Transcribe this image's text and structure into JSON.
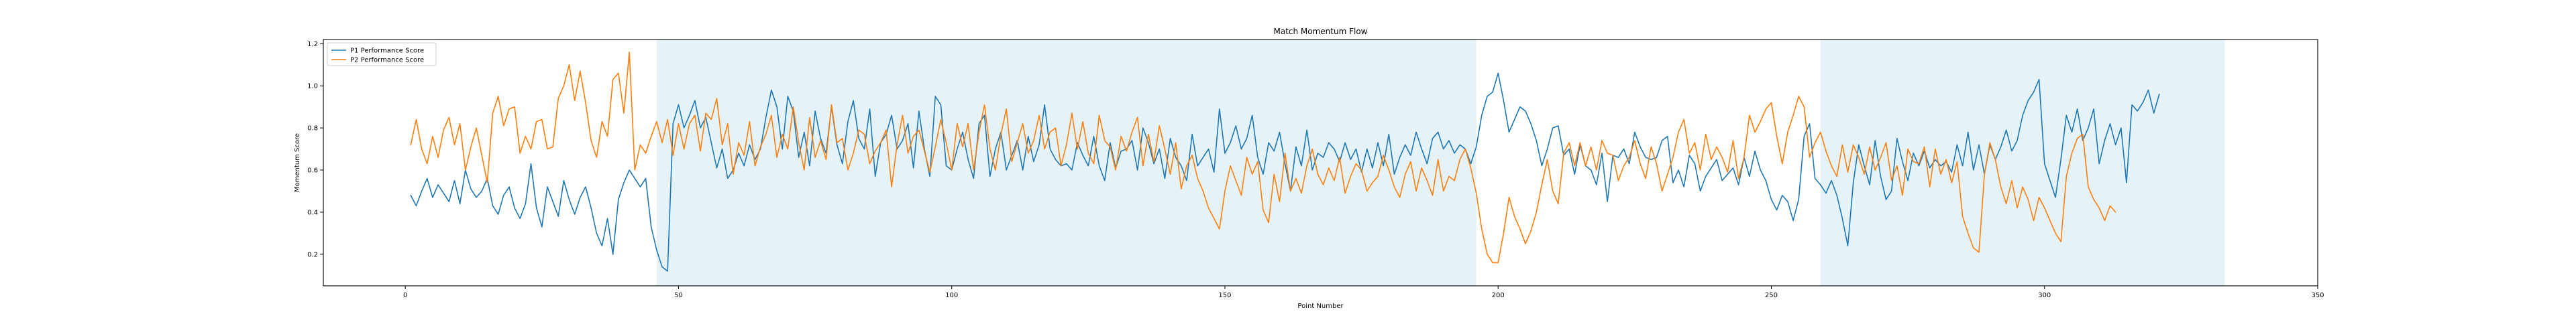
{
  "chart_data": {
    "type": "line",
    "title": "Match Momentum Flow",
    "xlabel": "Point Number",
    "ylabel": "Momentum Score",
    "xlim": [
      -15,
      350
    ],
    "ylim": [
      0.05,
      1.22
    ],
    "xticks": [
      0,
      50,
      100,
      150,
      200,
      250,
      300,
      350
    ],
    "yticks": [
      0.2,
      0.4,
      0.6,
      0.8,
      1.0,
      1.2
    ],
    "grid": false,
    "legend_position": "top-left",
    "shaded_regions": [
      [
        46,
        196
      ],
      [
        259,
        333
      ]
    ],
    "shade_color": "#add8e6",
    "series": [
      {
        "name": "P1 Performance Score",
        "color": "#1f77b4",
        "x_start": 1,
        "values": [
          0.48,
          0.43,
          0.5,
          0.56,
          0.47,
          0.53,
          0.49,
          0.45,
          0.55,
          0.44,
          0.6,
          0.51,
          0.47,
          0.5,
          0.56,
          0.43,
          0.39,
          0.48,
          0.52,
          0.42,
          0.37,
          0.44,
          0.63,
          0.42,
          0.33,
          0.52,
          0.45,
          0.38,
          0.55,
          0.46,
          0.39,
          0.47,
          0.52,
          0.42,
          0.3,
          0.24,
          0.37,
          0.2,
          0.46,
          0.54,
          0.6,
          0.56,
          0.52,
          0.56,
          0.33,
          0.22,
          0.14,
          0.12,
          0.82,
          0.91,
          0.8,
          0.86,
          0.93,
          0.8,
          0.85,
          0.73,
          0.61,
          0.7,
          0.56,
          0.6,
          0.68,
          0.62,
          0.72,
          0.65,
          0.7,
          0.85,
          0.98,
          0.9,
          0.7,
          0.95,
          0.88,
          0.66,
          0.78,
          0.62,
          0.88,
          0.75,
          0.68,
          0.9,
          0.72,
          0.63,
          0.83,
          0.93,
          0.75,
          0.7,
          0.89,
          0.57,
          0.73,
          0.77,
          0.86,
          0.7,
          0.74,
          0.82,
          0.61,
          0.88,
          0.7,
          0.57,
          0.95,
          0.91,
          0.62,
          0.6,
          0.7,
          0.78,
          0.65,
          0.56,
          0.82,
          0.86,
          0.57,
          0.7,
          0.78,
          0.6,
          0.67,
          0.74,
          0.6,
          0.76,
          0.64,
          0.72,
          0.91,
          0.7,
          0.65,
          0.62,
          0.63,
          0.6,
          0.73,
          0.67,
          0.62,
          0.76,
          0.62,
          0.55,
          0.73,
          0.61,
          0.69,
          0.7,
          0.74,
          0.6,
          0.8,
          0.73,
          0.63,
          0.7,
          0.56,
          0.75,
          0.66,
          0.62,
          0.55,
          0.77,
          0.62,
          0.66,
          0.7,
          0.59,
          0.89,
          0.68,
          0.73,
          0.81,
          0.7,
          0.75,
          0.86,
          0.66,
          0.58,
          0.73,
          0.69,
          0.78,
          0.63,
          0.5,
          0.71,
          0.62,
          0.79,
          0.6,
          0.68,
          0.66,
          0.73,
          0.7,
          0.64,
          0.73,
          0.65,
          0.7,
          0.59,
          0.7,
          0.61,
          0.73,
          0.62,
          0.77,
          0.58,
          0.66,
          0.72,
          0.67,
          0.78,
          0.7,
          0.63,
          0.75,
          0.78,
          0.7,
          0.74,
          0.68,
          0.72,
          0.7,
          0.63,
          0.71,
          0.86,
          0.95,
          0.97,
          1.06,
          0.93,
          0.78,
          0.84,
          0.9,
          0.88,
          0.82,
          0.74,
          0.62,
          0.7,
          0.8,
          0.81,
          0.67,
          0.7,
          0.58,
          0.72,
          0.62,
          0.6,
          0.53,
          0.68,
          0.45,
          0.67,
          0.66,
          0.7,
          0.63,
          0.78,
          0.71,
          0.66,
          0.65,
          0.66,
          0.74,
          0.76,
          0.54,
          0.6,
          0.52,
          0.67,
          0.63,
          0.5,
          0.57,
          0.61,
          0.65,
          0.55,
          0.58,
          0.61,
          0.53,
          0.66,
          0.57,
          0.69,
          0.6,
          0.55,
          0.46,
          0.41,
          0.48,
          0.45,
          0.36,
          0.46,
          0.76,
          0.82,
          0.56,
          0.53,
          0.49,
          0.55,
          0.48,
          0.37,
          0.24,
          0.54,
          0.72,
          0.62,
          0.53,
          0.74,
          0.57,
          0.46,
          0.5,
          0.75,
          0.64,
          0.55,
          0.68,
          0.62,
          0.69,
          0.61,
          0.65,
          0.62,
          0.64,
          0.59,
          0.72,
          0.62,
          0.78,
          0.6,
          0.72,
          0.58,
          0.72,
          0.65,
          0.71,
          0.79,
          0.69,
          0.74,
          0.86,
          0.93,
          0.97,
          1.03,
          0.63,
          0.55,
          0.47,
          0.65,
          0.86,
          0.78,
          0.89,
          0.74,
          0.8,
          0.89,
          0.63,
          0.74,
          0.82,
          0.72,
          0.8,
          0.54,
          0.91,
          0.88,
          0.92,
          0.98,
          0.87,
          0.96
        ]
      },
      {
        "name": "P2 Performance Score",
        "color": "#ff7f0e",
        "x_start": 1,
        "values": [
          0.72,
          0.84,
          0.7,
          0.63,
          0.76,
          0.66,
          0.79,
          0.85,
          0.72,
          0.82,
          0.6,
          0.71,
          0.8,
          0.67,
          0.54,
          0.87,
          0.95,
          0.81,
          0.89,
          0.9,
          0.68,
          0.76,
          0.7,
          0.83,
          0.84,
          0.7,
          0.71,
          0.94,
          1.0,
          1.1,
          0.93,
          1.07,
          0.92,
          0.74,
          0.66,
          0.83,
          0.76,
          1.03,
          1.06,
          0.87,
          1.16,
          0.6,
          0.72,
          0.68,
          0.76,
          0.83,
          0.73,
          0.84,
          0.67,
          0.82,
          0.7,
          0.82,
          0.86,
          0.69,
          0.87,
          0.84,
          0.94,
          0.72,
          0.82,
          0.58,
          0.73,
          0.67,
          0.83,
          0.62,
          0.71,
          0.77,
          0.86,
          0.66,
          0.77,
          0.7,
          0.9,
          0.73,
          0.6,
          0.85,
          0.66,
          0.74,
          0.65,
          0.91,
          0.73,
          0.75,
          0.6,
          0.68,
          0.79,
          0.77,
          0.63,
          0.69,
          0.73,
          0.79,
          0.52,
          0.72,
          0.86,
          0.68,
          0.76,
          0.79,
          0.69,
          0.59,
          0.71,
          0.84,
          0.73,
          0.6,
          0.82,
          0.71,
          0.82,
          0.6,
          0.78,
          0.91,
          0.7,
          0.6,
          0.77,
          0.89,
          0.64,
          0.73,
          0.82,
          0.68,
          0.74,
          0.86,
          0.7,
          0.78,
          0.8,
          0.62,
          0.72,
          0.87,
          0.7,
          0.83,
          0.68,
          0.63,
          0.86,
          0.74,
          0.71,
          0.6,
          0.76,
          0.69,
          0.78,
          0.85,
          0.62,
          0.77,
          0.64,
          0.81,
          0.7,
          0.58,
          0.73,
          0.51,
          0.62,
          0.67,
          0.56,
          0.5,
          0.42,
          0.37,
          0.32,
          0.5,
          0.62,
          0.55,
          0.48,
          0.66,
          0.58,
          0.64,
          0.41,
          0.35,
          0.58,
          0.45,
          0.68,
          0.5,
          0.56,
          0.49,
          0.62,
          0.7,
          0.58,
          0.53,
          0.61,
          0.55,
          0.66,
          0.49,
          0.57,
          0.63,
          0.6,
          0.5,
          0.54,
          0.57,
          0.67,
          0.6,
          0.52,
          0.47,
          0.58,
          0.64,
          0.5,
          0.61,
          0.55,
          0.48,
          0.65,
          0.5,
          0.57,
          0.55,
          0.65,
          0.7,
          0.61,
          0.49,
          0.32,
          0.2,
          0.16,
          0.16,
          0.3,
          0.47,
          0.38,
          0.32,
          0.25,
          0.31,
          0.4,
          0.53,
          0.65,
          0.5,
          0.44,
          0.68,
          0.73,
          0.62,
          0.73,
          0.62,
          0.71,
          0.6,
          0.74,
          0.68,
          0.67,
          0.55,
          0.62,
          0.66,
          0.74,
          0.63,
          0.56,
          0.71,
          0.63,
          0.5,
          0.58,
          0.66,
          0.78,
          0.84,
          0.68,
          0.73,
          0.6,
          0.77,
          0.65,
          0.71,
          0.66,
          0.59,
          0.74,
          0.56,
          0.66,
          0.86,
          0.78,
          0.83,
          0.89,
          0.92,
          0.76,
          0.63,
          0.78,
          0.86,
          0.95,
          0.9,
          0.66,
          0.73,
          0.78,
          0.69,
          0.62,
          0.57,
          0.72,
          0.59,
          0.72,
          0.66,
          0.58,
          0.71,
          0.6,
          0.66,
          0.73,
          0.55,
          0.62,
          0.48,
          0.7,
          0.64,
          0.63,
          0.71,
          0.52,
          0.7,
          0.58,
          0.65,
          0.54,
          0.64,
          0.38,
          0.3,
          0.23,
          0.21,
          0.58,
          0.73,
          0.65,
          0.52,
          0.44,
          0.55,
          0.42,
          0.52,
          0.46,
          0.36,
          0.47,
          0.42,
          0.36,
          0.3,
          0.26,
          0.57,
          0.68,
          0.75,
          0.77,
          0.52,
          0.46,
          0.42,
          0.36,
          0.43,
          0.4
        ]
      }
    ]
  }
}
